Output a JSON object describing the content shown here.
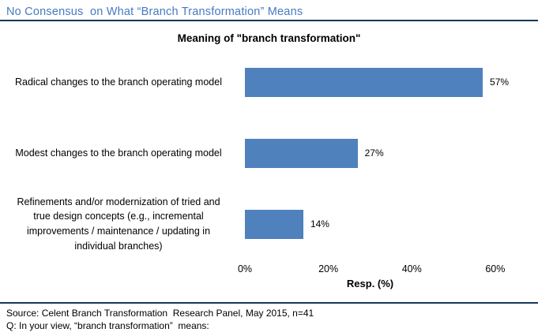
{
  "header": {
    "title": "No Consensus  on What “Branch Transformation” Means"
  },
  "chart_data": {
    "type": "bar",
    "orientation": "horizontal",
    "title": "Meaning of \"branch transformation\"",
    "categories": [
      "Radical changes to the branch operating model",
      "Modest changes to the branch operating model",
      "Refinements and/or modernization of tried and true design concepts (e.g., incremental improvements / maintenance / updating in individual branches)"
    ],
    "values": [
      57,
      27,
      14
    ],
    "data_labels": [
      "57%",
      "27%",
      "14%"
    ],
    "xlabel": "Resp. (%)",
    "xlim": [
      0,
      64
    ],
    "xticks": [
      0,
      20,
      40,
      60
    ],
    "xtick_labels": [
      "0%",
      "20%",
      "40%",
      "60%"
    ],
    "grid": false,
    "legend": false,
    "bar_color": "#4F81BD"
  },
  "footer": {
    "source": "Source: Celent Branch Transformation  Research Panel, May 2015, n=41",
    "question": "Q: In your view, “branch transformation”  means:"
  },
  "colors": {
    "header_text": "#4779C4",
    "rule": "#17375E",
    "bar": "#4F81BD"
  }
}
